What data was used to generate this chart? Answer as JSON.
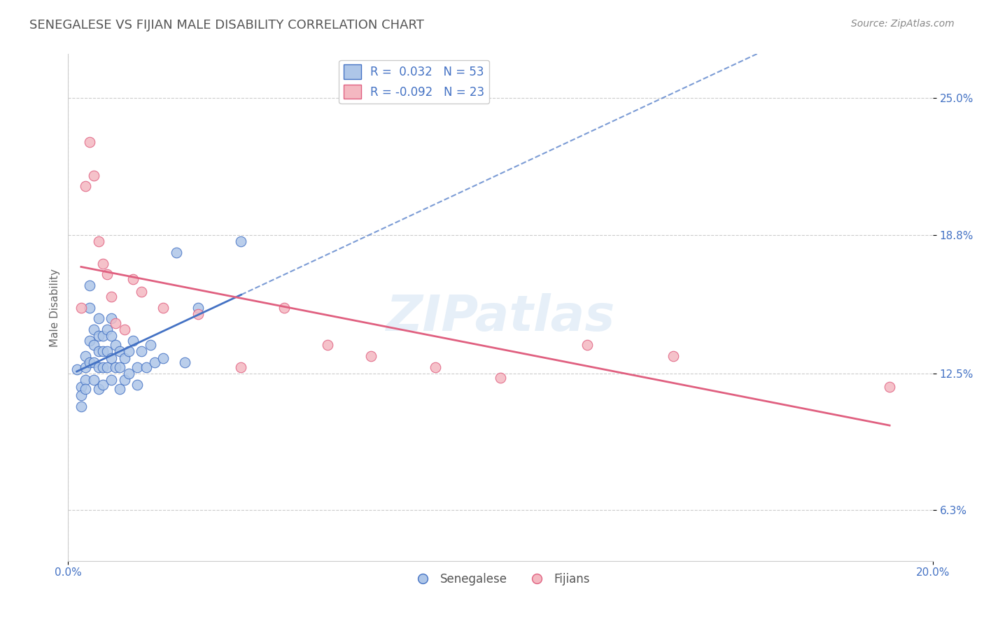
{
  "title": "SENEGALESE VS FIJIAN MALE DISABILITY CORRELATION CHART",
  "ylabel": "Male Disability",
  "source_text": "Source: ZipAtlas.com",
  "x_min": 0.0,
  "x_max": 0.2,
  "y_min": 0.04,
  "y_max": 0.27,
  "y_ticks": [
    0.063,
    0.125,
    0.188,
    0.25
  ],
  "y_tick_labels": [
    "6.3%",
    "12.5%",
    "18.8%",
    "25.0%"
  ],
  "blue_r": "0.032",
  "blue_n": "53",
  "pink_r": "-0.092",
  "pink_n": "23",
  "legend_labels": [
    "Senegalese",
    "Fijians"
  ],
  "senegalese_color": "#aec6e8",
  "fijian_color": "#f4b8c1",
  "trend_blue": "#4472c4",
  "trend_pink": "#e06080",
  "watermark": "ZIPatlas",
  "senegalese_x": [
    0.002,
    0.003,
    0.003,
    0.003,
    0.004,
    0.004,
    0.004,
    0.004,
    0.005,
    0.005,
    0.005,
    0.005,
    0.006,
    0.006,
    0.006,
    0.006,
    0.007,
    0.007,
    0.007,
    0.007,
    0.007,
    0.008,
    0.008,
    0.008,
    0.008,
    0.009,
    0.009,
    0.009,
    0.01,
    0.01,
    0.01,
    0.01,
    0.011,
    0.011,
    0.012,
    0.012,
    0.012,
    0.013,
    0.013,
    0.014,
    0.014,
    0.015,
    0.016,
    0.016,
    0.017,
    0.018,
    0.019,
    0.02,
    0.022,
    0.025,
    0.027,
    0.03,
    0.04
  ],
  "senegalese_y": [
    0.127,
    0.119,
    0.115,
    0.11,
    0.133,
    0.128,
    0.122,
    0.118,
    0.165,
    0.155,
    0.14,
    0.13,
    0.145,
    0.138,
    0.13,
    0.122,
    0.15,
    0.142,
    0.135,
    0.128,
    0.118,
    0.142,
    0.135,
    0.128,
    0.12,
    0.145,
    0.135,
    0.128,
    0.15,
    0.142,
    0.132,
    0.122,
    0.138,
    0.128,
    0.135,
    0.128,
    0.118,
    0.132,
    0.122,
    0.135,
    0.125,
    0.14,
    0.128,
    0.12,
    0.135,
    0.128,
    0.138,
    0.13,
    0.132,
    0.18,
    0.13,
    0.155,
    0.185
  ],
  "fijian_x": [
    0.003,
    0.004,
    0.005,
    0.006,
    0.007,
    0.008,
    0.009,
    0.01,
    0.011,
    0.013,
    0.015,
    0.017,
    0.022,
    0.03,
    0.04,
    0.05,
    0.06,
    0.07,
    0.085,
    0.1,
    0.12,
    0.14,
    0.19
  ],
  "fijian_y": [
    0.155,
    0.21,
    0.23,
    0.215,
    0.185,
    0.175,
    0.17,
    0.16,
    0.148,
    0.145,
    0.168,
    0.162,
    0.155,
    0.152,
    0.128,
    0.155,
    0.138,
    0.133,
    0.128,
    0.123,
    0.138,
    0.133,
    0.119
  ],
  "sen_trend_x_start": 0.002,
  "sen_trend_x_solid_end": 0.04,
  "fij_trend_x_start": 0.003,
  "fij_trend_x_solid_end": 0.19
}
